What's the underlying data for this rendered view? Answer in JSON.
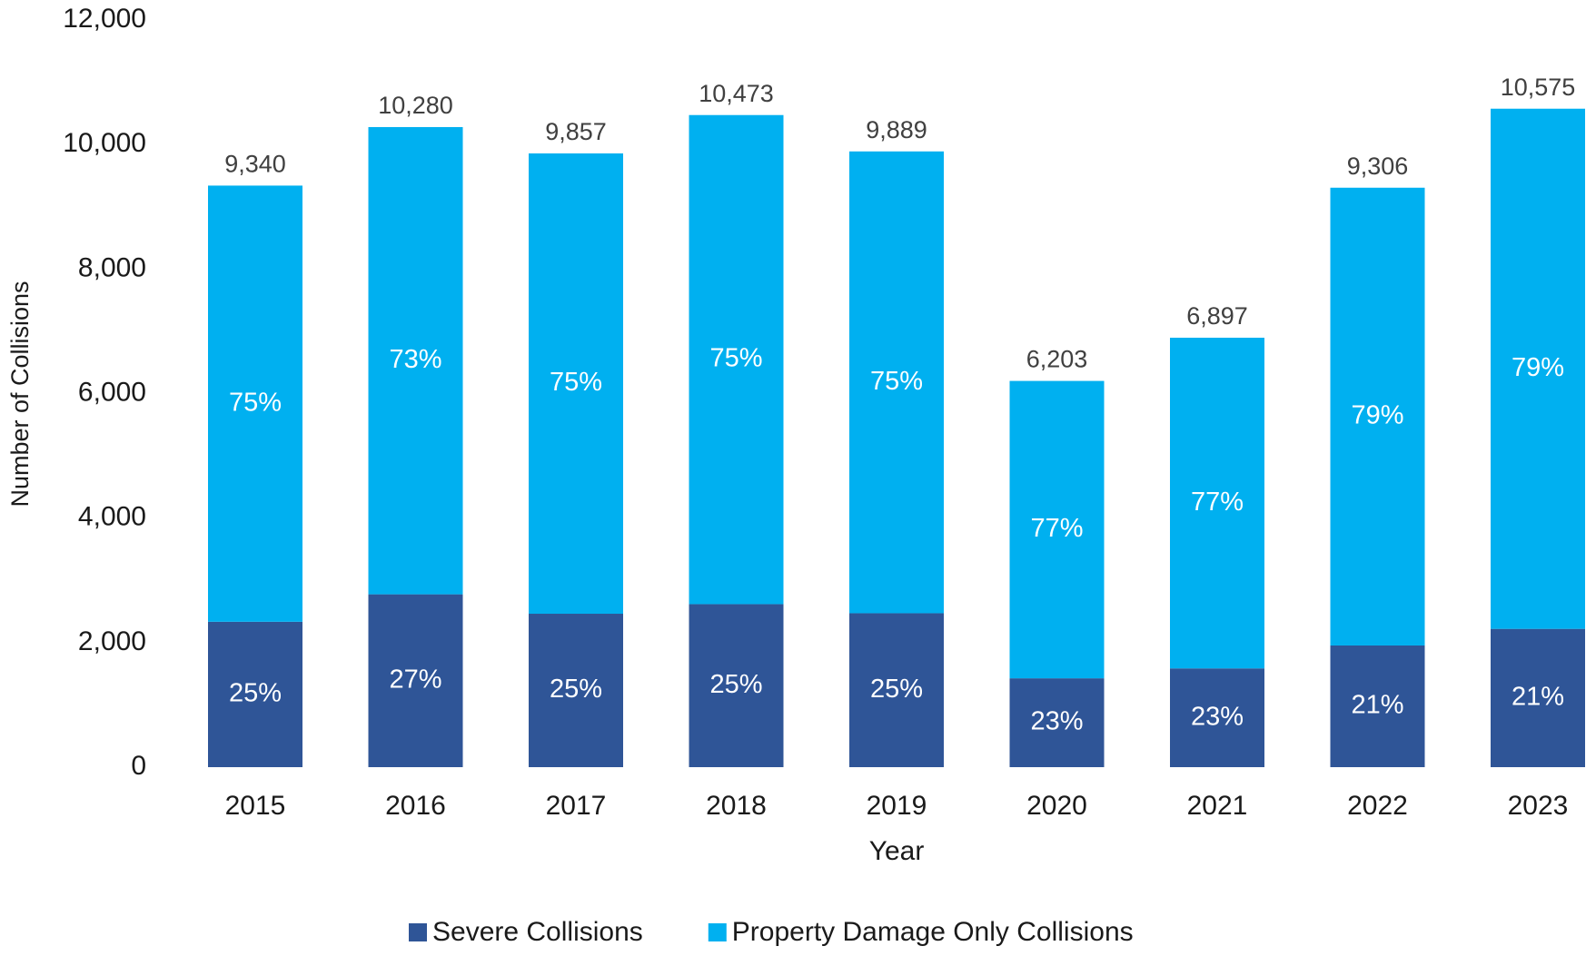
{
  "chart_data": {
    "type": "stacked_bar",
    "x_label": "Year",
    "y_label": "Number of Collisions",
    "categories": [
      "2015",
      "2016",
      "2017",
      "2018",
      "2019",
      "2020",
      "2021",
      "2022",
      "2023"
    ],
    "series": [
      {
        "name": "Severe Collisions",
        "color": "#2f5597",
        "values": [
          2335,
          2776,
          2464,
          2618,
          2472,
          1427,
          1586,
          1954,
          2221
        ],
        "shares": [
          25,
          27,
          25,
          25,
          25,
          23,
          23,
          21,
          21
        ],
        "share_labels": [
          "25%",
          "27%",
          "25%",
          "25%",
          "25%",
          "23%",
          "23%",
          "21%",
          "21%"
        ]
      },
      {
        "name": "Property Damage Only Collisions",
        "color": "#00b0f0",
        "values": [
          7005,
          7504,
          7393,
          7855,
          7417,
          4776,
          5311,
          7352,
          8354
        ],
        "shares": [
          75,
          73,
          75,
          75,
          75,
          77,
          77,
          79,
          79
        ],
        "share_labels": [
          "75%",
          "73%",
          "75%",
          "75%",
          "75%",
          "77%",
          "77%",
          "79%",
          "79%"
        ]
      }
    ],
    "totals": [
      9340,
      10280,
      9857,
      10473,
      9889,
      6203,
      6897,
      9306,
      10575
    ],
    "total_labels": [
      "9,340",
      "10,280",
      "9,857",
      "10,473",
      "9,889",
      "6,203",
      "6,897",
      "9,306",
      "10,575"
    ],
    "ylim": [
      0,
      12000
    ],
    "yticks": [
      0,
      {
        "value": 2000,
        "label": "2,000"
      },
      {
        "value": 4000,
        "label": "4,000"
      },
      {
        "value": 6000,
        "label": "6,000"
      },
      {
        "value": 8000,
        "label": "8,000"
      },
      {
        "value": 10000,
        "label": "10,000"
      },
      {
        "value": 12000,
        "label": "12,000"
      }
    ],
    "grid": false,
    "legend": "bottom"
  }
}
